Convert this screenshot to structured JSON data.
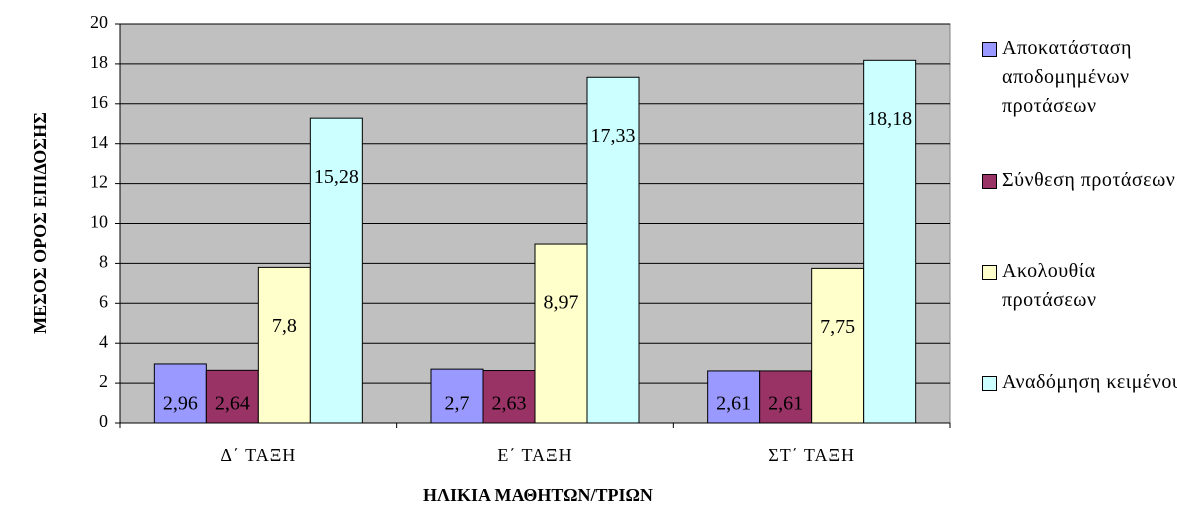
{
  "chart_data": {
    "type": "bar",
    "xlabel": "ΗΛΙΚΙΑ ΜΑΘΗΤΩΝ/ΤΡΙΩΝ",
    "ylabel": "ΜΕΣΟΣ ΟΡΟΣ ΕΠΙΔΟΣΗΣ",
    "categories": [
      "Δ΄ ΤΑΞΗ",
      "Ε΄ ΤΑΞΗ",
      "ΣΤ΄ ΤΑΞΗ"
    ],
    "series": [
      {
        "name": "Αποκατάσταση αποδομημένων προτάσεων",
        "color": "#9999ff",
        "values": [
          2.96,
          2.7,
          2.61
        ],
        "value_labels": [
          "2,96",
          "2,7",
          "2,61"
        ]
      },
      {
        "name": "Σύνθεση προτάσεων",
        "color": "#993366",
        "values": [
          2.64,
          2.63,
          2.61
        ],
        "value_labels": [
          "2,64",
          "2,63",
          "2,61"
        ]
      },
      {
        "name": "Ακολουθία προτάσεων",
        "color": "#ffffcc",
        "values": [
          7.8,
          8.97,
          7.75
        ],
        "value_labels": [
          "7,8",
          "8,97",
          "7,75"
        ]
      },
      {
        "name": "Αναδόμηση κειμένου",
        "color": "#ccffff",
        "values": [
          15.28,
          17.33,
          18.18
        ],
        "value_labels": [
          "15,28",
          "17,33",
          "18,18"
        ]
      }
    ],
    "ylim": [
      0,
      20
    ],
    "yticks": [
      0,
      2,
      4,
      6,
      8,
      10,
      12,
      14,
      16,
      18,
      20
    ],
    "grid": true,
    "legend": "right"
  }
}
